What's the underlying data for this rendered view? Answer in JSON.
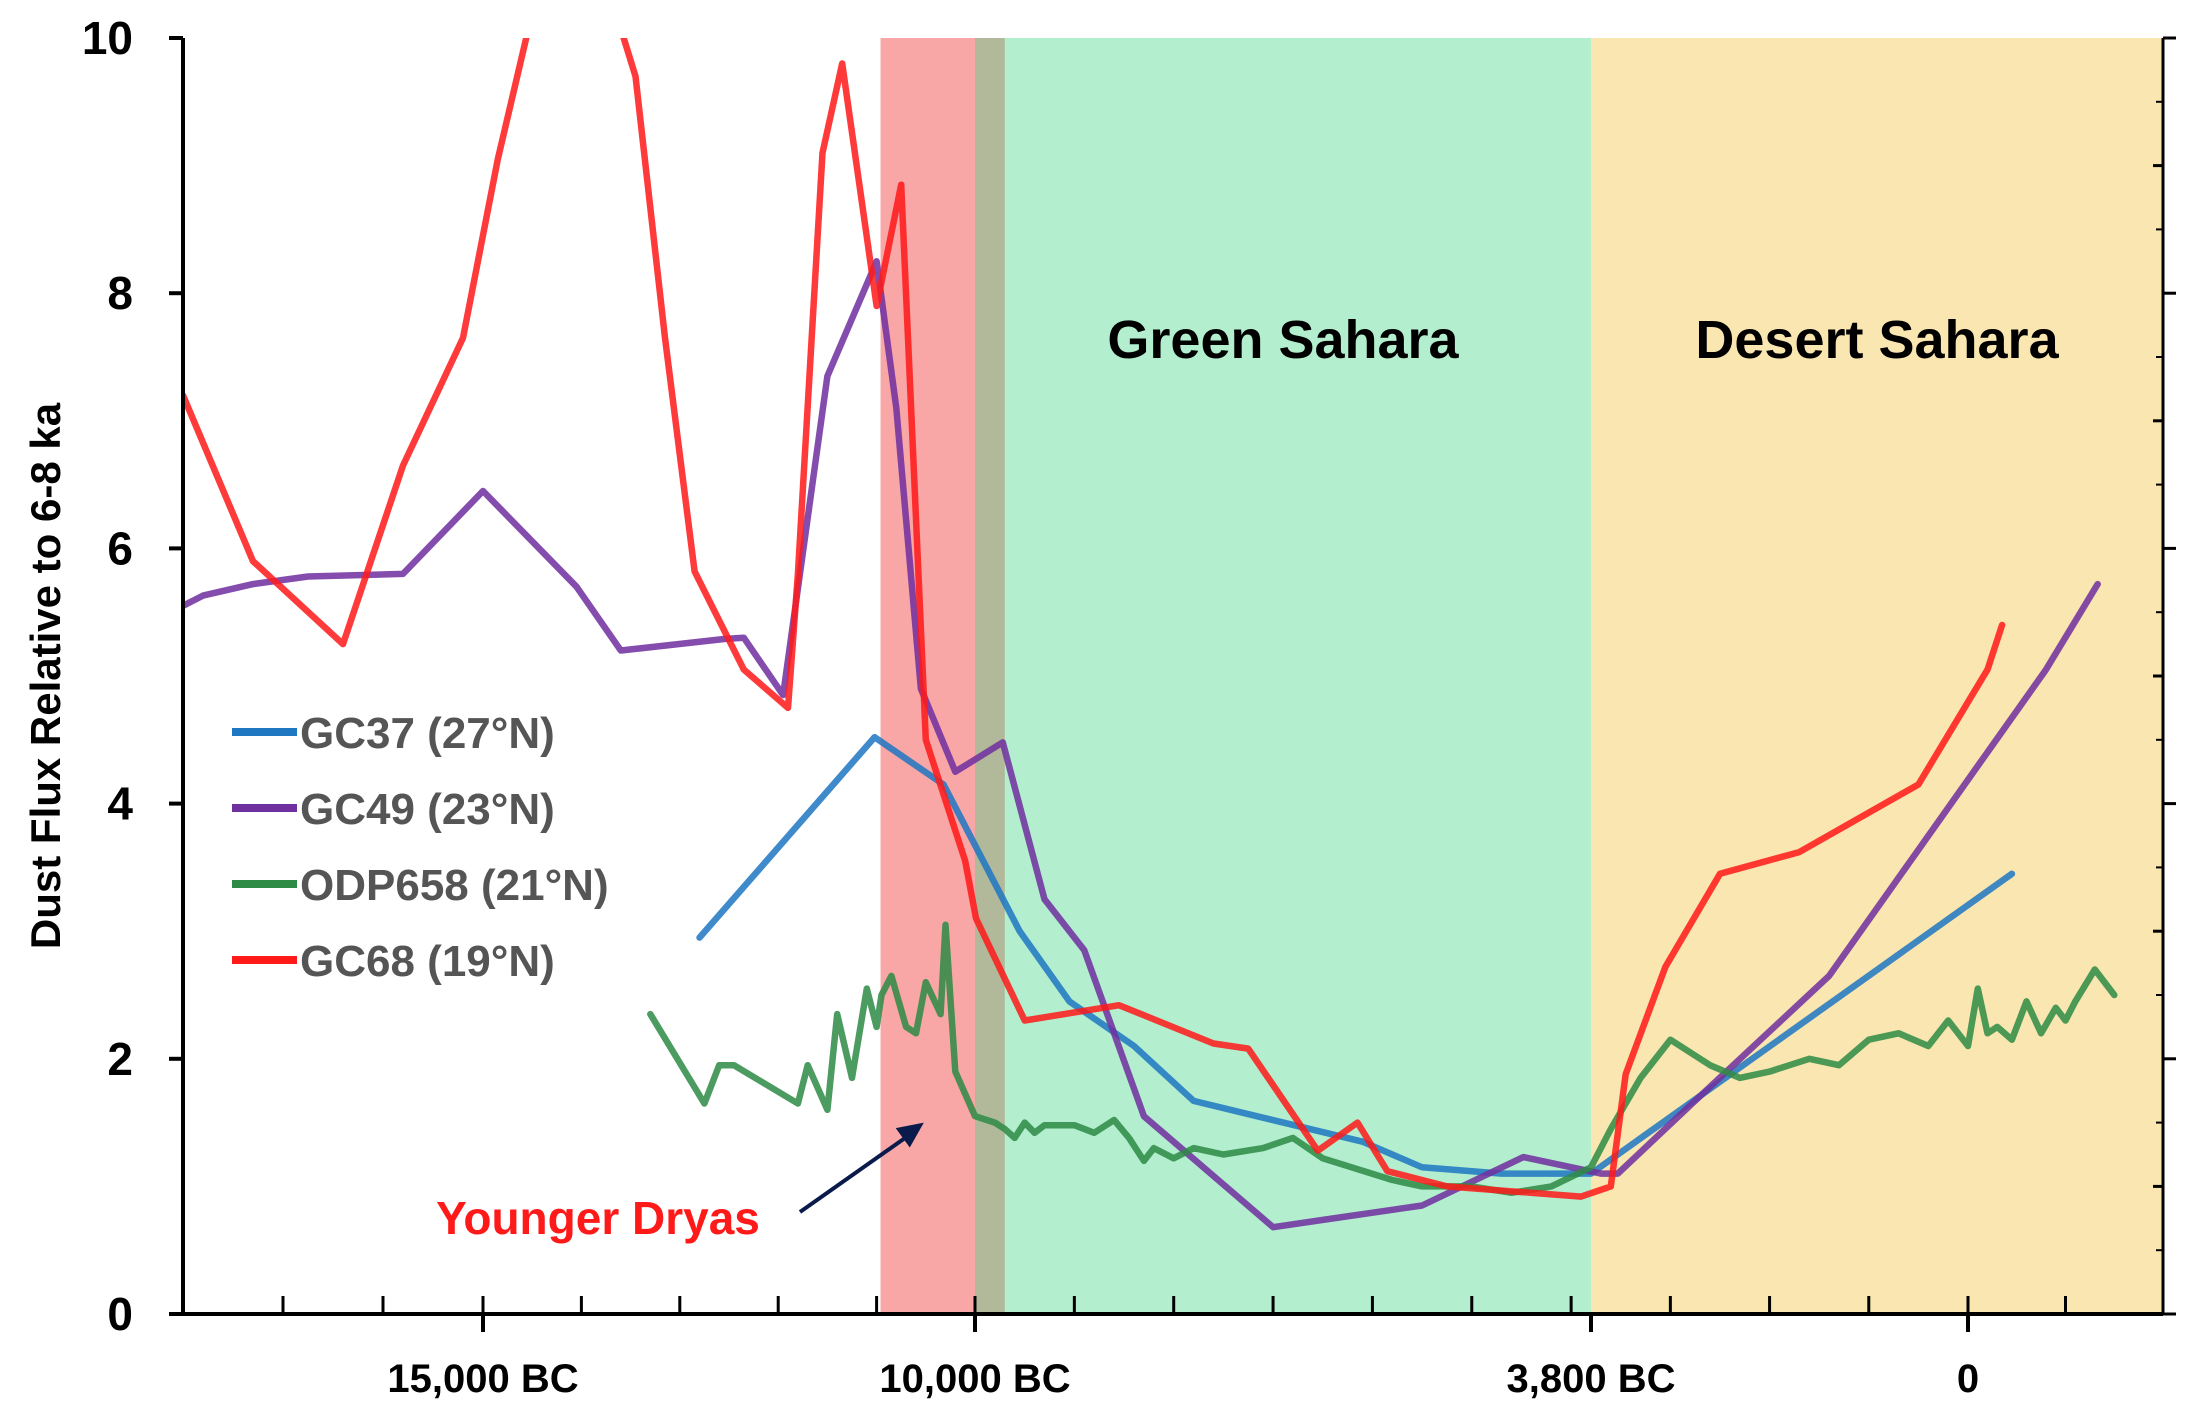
{
  "chart_data": {
    "type": "line",
    "title": "",
    "ylabel": "Dust Flux Relative to 6-8 ka",
    "xlabel": "",
    "ylim": [
      0,
      10
    ],
    "y_ticks": [
      "0",
      "2",
      "4",
      "6",
      "8",
      "10"
    ],
    "x_range_years": [
      -18000,
      2000
    ],
    "x_ticks": [
      {
        "year": -15000,
        "label": "15,000 BC"
      },
      {
        "year": -10000,
        "label": "10,000 BC"
      },
      {
        "year": -3800,
        "label": "3,800 BC"
      },
      {
        "year": 0,
        "label": "0"
      }
    ],
    "regions": [
      {
        "name": "younger-dryas",
        "from": -10960,
        "to": -9700,
        "color": "#f9a6a6"
      },
      {
        "name": "green-sahara",
        "from": -10000,
        "to": -3800,
        "color": "#b3efcf",
        "label": "Green Sahara"
      },
      {
        "name": "desert-sahara",
        "from": -3800,
        "to": 2000,
        "color": "#fae6b0",
        "label": "Desert Sahara"
      }
    ],
    "overlap_color": "#b2b99a",
    "annotation": {
      "text": "Younger Dryas",
      "color": "#ff1a1a",
      "arrow_to": {
        "x": -10520,
        "y": 1.5
      }
    },
    "legend": {
      "position": "left-middle",
      "text_color": "#555555"
    },
    "series": [
      {
        "name": "GC37 (27°N)",
        "color": "#1f77c2",
        "x": [
          -12800,
          -11020,
          -10320,
          -9550,
          -9050,
          -8400,
          -7800,
          -6100,
          -5500,
          -4700,
          -3800,
          450
        ],
        "y": [
          2.95,
          4.52,
          4.15,
          3.0,
          2.45,
          2.1,
          1.67,
          1.35,
          1.15,
          1.1,
          1.1,
          3.45
        ]
      },
      {
        "name": "GC49 (23°N)",
        "color": "#7030a0",
        "x": [
          -18000,
          -17800,
          -17300,
          -16750,
          -15800,
          -15000,
          -14050,
          -13600,
          -12550,
          -12350,
          -11950,
          -11500,
          -11000,
          -10800,
          -10550,
          -10200,
          -9720,
          -9300,
          -8900,
          -8300,
          -7000,
          -6480,
          -5500,
          -4480,
          -3700,
          -3530,
          -2780,
          -1400,
          800,
          1330
        ],
        "y": [
          5.55,
          5.63,
          5.72,
          5.78,
          5.8,
          6.45,
          5.7,
          5.2,
          5.29,
          5.3,
          4.85,
          7.35,
          8.25,
          7.1,
          4.9,
          4.25,
          4.48,
          3.25,
          2.85,
          1.55,
          0.68,
          0.74,
          0.85,
          1.23,
          1.1,
          1.1,
          1.65,
          2.65,
          5.05,
          5.72
        ]
      },
      {
        "name": "ODP658 (21°N)",
        "color": "#2e8b46",
        "x": [
          -13300,
          -12750,
          -12600,
          -12450,
          -11800,
          -11700,
          -11500,
          -11400,
          -11250,
          -11100,
          -11000,
          -10950,
          -10850,
          -10700,
          -10600,
          -10500,
          -10350,
          -10300,
          -10200,
          -10000,
          -9800,
          -9700,
          -9600,
          -9500,
          -9400,
          -9300,
          -9000,
          -8800,
          -8600,
          -8450,
          -8300,
          -8200,
          -8000,
          -7800,
          -7500,
          -7100,
          -6800,
          -6500,
          -5800,
          -5500,
          -5000,
          -4600,
          -4200,
          -3800,
          -3600,
          -3300,
          -3000,
          -2600,
          -2300,
          -2000,
          -1600,
          -1300,
          -1000,
          -700,
          -400,
          -200,
          0,
          100,
          200,
          300,
          450,
          600,
          750,
          900,
          1000,
          1100,
          1300,
          1500
        ],
        "y": [
          2.35,
          1.65,
          1.95,
          1.95,
          1.65,
          1.95,
          1.6,
          2.35,
          1.85,
          2.55,
          2.25,
          2.5,
          2.65,
          2.25,
          2.2,
          2.6,
          2.35,
          3.05,
          1.9,
          1.55,
          1.5,
          1.45,
          1.38,
          1.5,
          1.42,
          1.48,
          1.48,
          1.42,
          1.52,
          1.38,
          1.2,
          1.3,
          1.22,
          1.3,
          1.25,
          1.3,
          1.38,
          1.22,
          1.05,
          1.0,
          1.0,
          0.95,
          1.0,
          1.15,
          1.45,
          1.85,
          2.15,
          1.95,
          1.85,
          1.9,
          2.0,
          1.95,
          2.15,
          2.2,
          2.1,
          2.3,
          2.1,
          2.55,
          2.2,
          2.25,
          2.15,
          2.45,
          2.2,
          2.4,
          2.3,
          2.45,
          2.7,
          2.5
        ]
      },
      {
        "name": "GC68 (19°N)",
        "color": "#ff1a1a",
        "x": [
          -18000,
          -17300,
          -16400,
          -15800,
          -15200,
          -14850,
          -14500,
          -14300,
          -13650,
          -13450,
          -13150,
          -12850,
          -12350,
          -11900,
          -11800,
          -11550,
          -11350,
          -11000,
          -10750,
          -10500,
          -10100,
          -9990,
          -9500,
          -8550,
          -7600,
          -7250,
          -6550,
          -6150,
          -5850,
          -5250,
          -3900,
          -3600,
          -3450,
          -3050,
          -2500,
          -1700,
          -500,
          200,
          350
        ],
        "y": [
          7.2,
          5.9,
          5.25,
          6.65,
          7.65,
          9.05,
          10.2,
          10.2,
          10.2,
          9.7,
          7.65,
          5.82,
          5.05,
          4.75,
          5.8,
          9.1,
          9.8,
          7.9,
          8.85,
          4.5,
          3.55,
          3.1,
          2.3,
          2.42,
          2.12,
          2.08,
          1.28,
          1.5,
          1.12,
          1.0,
          0.92,
          1.0,
          1.88,
          2.72,
          3.45,
          3.62,
          4.15,
          5.05,
          5.4
        ]
      }
    ]
  }
}
